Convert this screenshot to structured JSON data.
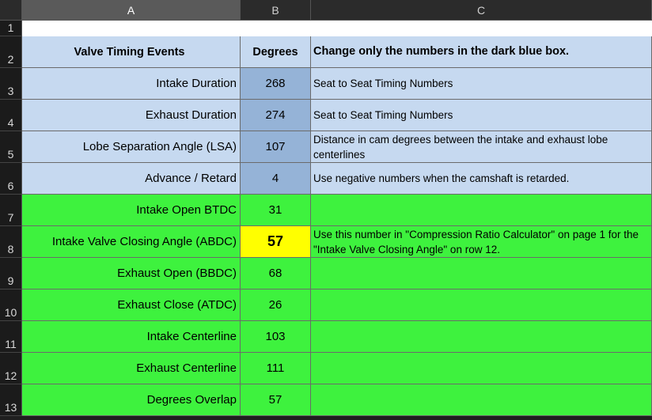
{
  "columns": [
    "A",
    "B",
    "C"
  ],
  "rows": [
    {
      "number": 1
    },
    {
      "number": 2,
      "a": "Valve Timing Events",
      "b": "Degrees",
      "c": "Change only the numbers in the dark blue box."
    },
    {
      "number": 3,
      "a": "Intake Duration",
      "b": 268,
      "c": "Seat to Seat Timing Numbers"
    },
    {
      "number": 4,
      "a": "Exhaust Duration",
      "b": 274,
      "c": "Seat to Seat Timing Numbers"
    },
    {
      "number": 5,
      "a": "Lobe Separation Angle  (LSA)",
      "b": 107,
      "c": "Distance in cam degrees between the intake and exhaust lobe centerlines"
    },
    {
      "number": 6,
      "a": "Advance / Retard",
      "b": 4,
      "c": "Use negative numbers when the camshaft is retarded."
    },
    {
      "number": 7,
      "a": "Intake Open BTDC",
      "b": 31
    },
    {
      "number": 8,
      "a": "Intake Valve Closing Angle (ABDC)",
      "b": 57,
      "c": "Use this number in \"Compression Ratio Calculator\" on page 1 for the \"Intake Valve Closing Angle\" on row 12."
    },
    {
      "number": 9,
      "a": "Exhaust Open (BBDC)",
      "b": 68
    },
    {
      "number": 10,
      "a": "Exhaust Close (ATDC)",
      "b": 26
    },
    {
      "number": 11,
      "a": "Intake Centerline",
      "b": 103
    },
    {
      "number": 12,
      "a": "Exhaust Centerline",
      "b": 111
    },
    {
      "number": 13,
      "a": "Degrees Overlap",
      "b": 57
    }
  ]
}
